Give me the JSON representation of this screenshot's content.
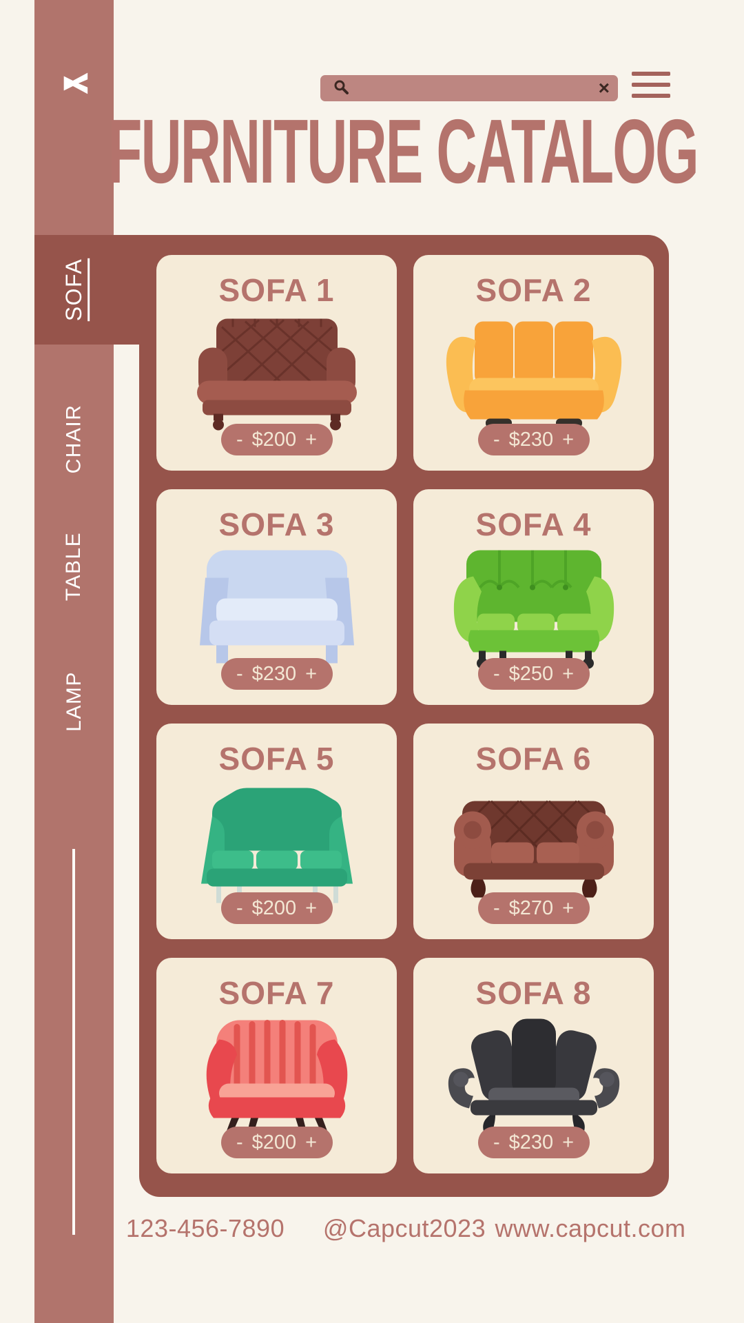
{
  "brand": {
    "logo": "capcut-logo"
  },
  "topbar": {
    "search": {
      "value": "",
      "placeholder": ""
    },
    "close_glyph": "×"
  },
  "header": {
    "title": "FURNITURE CATALOG"
  },
  "sidebar": {
    "tabs": [
      {
        "label": "SOFA",
        "active": true
      },
      {
        "label": "CHAIR",
        "active": false
      },
      {
        "label": "TABLE",
        "active": false
      },
      {
        "label": "LAMP",
        "active": false
      }
    ]
  },
  "catalog": {
    "items": [
      {
        "title": "SOFA 1",
        "minus": "-",
        "price": "$200",
        "plus": "+",
        "variant": "sofa-1"
      },
      {
        "title": "SOFA 2",
        "minus": "-",
        "price": "$230",
        "plus": "+",
        "variant": "sofa-2"
      },
      {
        "title": "SOFA 3",
        "minus": "-",
        "price": "$230",
        "plus": "+",
        "variant": "sofa-3"
      },
      {
        "title": "SOFA 4",
        "minus": "-",
        "price": "$250",
        "plus": "+",
        "variant": "sofa-4"
      },
      {
        "title": "SOFA 5",
        "minus": "-",
        "price": "$200",
        "plus": "+",
        "variant": "sofa-5"
      },
      {
        "title": "SOFA 6",
        "minus": "-",
        "price": "$270",
        "plus": "+",
        "variant": "sofa-6"
      },
      {
        "title": "SOFA 7",
        "minus": "-",
        "price": "$200",
        "plus": "+",
        "variant": "sofa-7"
      },
      {
        "title": "SOFA 8",
        "minus": "-",
        "price": "$230",
        "plus": "+",
        "variant": "sofa-8"
      }
    ]
  },
  "footer": {
    "phone": "123-456-7890",
    "handle": "@Capcut2023",
    "website": "www.capcut.com"
  },
  "colors": {
    "background": "#f8f4ec",
    "sidebar": "#b1746c",
    "panel": "#96544b",
    "card": "#f5ebd8",
    "accent_text": "#b5736c",
    "pill": "#b5736c",
    "pill_text": "#f3e7d4",
    "search_bar": "#bd8681",
    "hamburger": "#a4635c",
    "tab_text": "#ffffff"
  }
}
